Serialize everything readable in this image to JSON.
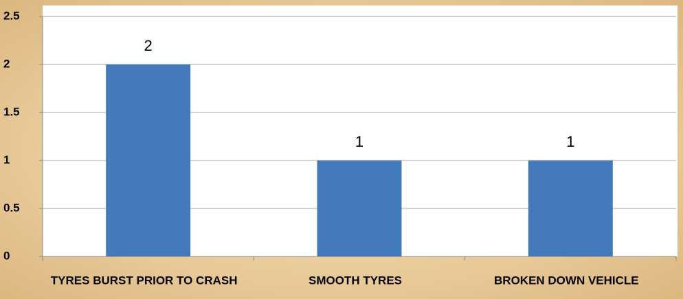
{
  "chart_data": {
    "type": "bar",
    "categories": [
      "TYRES BURST PRIOR TO CRASH",
      "SMOOTH TYRES",
      "BROKEN DOWN VEHICLE"
    ],
    "values": [
      2,
      1,
      1
    ],
    "color": "#4479bb",
    "ylim": [
      0,
      2.5
    ],
    "yticks": [
      0,
      0.5,
      1,
      1.5,
      2,
      2.5
    ],
    "grid": true
  }
}
